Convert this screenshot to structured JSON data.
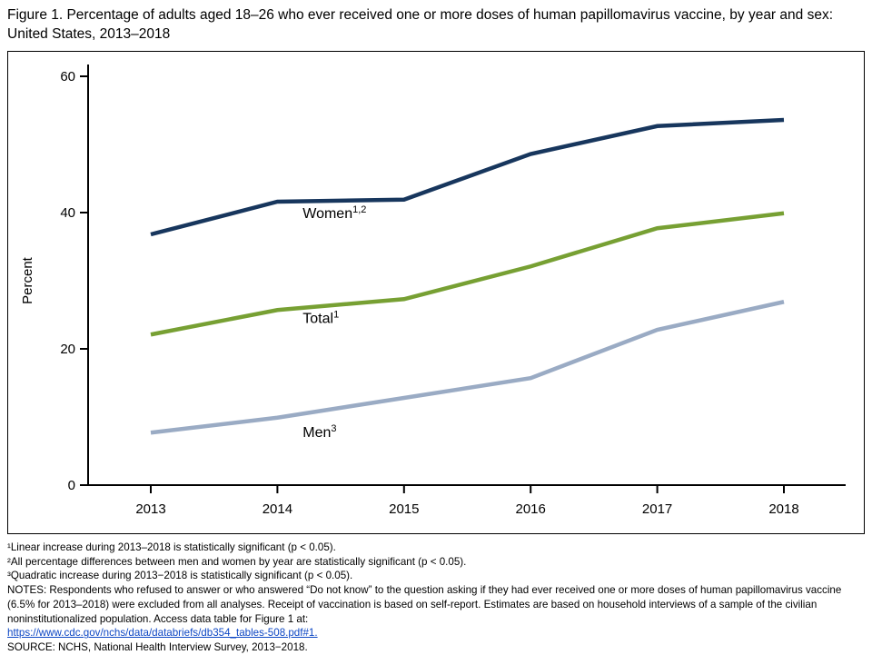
{
  "title": "Figure 1. Percentage of adults aged 18–26 who ever received one or more doses of human papillomavirus vaccine, by year and sex: United States, 2013–2018",
  "chart_data": {
    "type": "line",
    "x": [
      2013,
      2014,
      2015,
      2016,
      2017,
      2018
    ],
    "series": [
      {
        "name": "Women",
        "label_sup": "1,2",
        "color": "#17365d",
        "values": [
          36.8,
          41.6,
          41.9,
          48.6,
          52.7,
          53.6
        ],
        "label_at": {
          "year": 2014.2,
          "value": 39.2
        }
      },
      {
        "name": "Total",
        "label_sup": "1",
        "color": "#77a033",
        "values": [
          22.1,
          25.7,
          27.3,
          32.1,
          37.7,
          39.9
        ],
        "label_at": {
          "year": 2014.2,
          "value": 23.8
        }
      },
      {
        "name": "Men",
        "label_sup": "3",
        "color": "#9aabc4",
        "values": [
          7.7,
          9.9,
          12.8,
          15.7,
          22.8,
          26.9
        ],
        "label_at": {
          "year": 2014.2,
          "value": 7.1
        }
      }
    ],
    "title": "",
    "xlabel": "",
    "ylabel": "Percent",
    "ylim": [
      0,
      60
    ],
    "yticks": [
      0,
      20,
      40,
      60
    ],
    "grid": false,
    "legend": "inline-labels"
  },
  "footnotes": {
    "fn1": "¹Linear increase during 2013–2018 is statistically significant (p < 0.05).",
    "fn2": "²All percentage differences between men and women by year are statistically significant (p < 0.05).",
    "fn3": "³Quadratic increase during 2013−2018 is statistically significant (p < 0.05).",
    "notes": "NOTES: Respondents who refused to answer or who answered “Do not know” to the question asking if they had ever received one or more doses of human papillomavirus vaccine (6.5% for 2013–2018) were excluded from all analyses. Receipt of vaccination is based on self-report. Estimates are based on household interviews of a sample of the civilian noninstitutionalized population. Access data table for Figure 1 at:",
    "link": "https://www.cdc.gov/nchs/data/databriefs/db354_tables-508.pdf#1.",
    "source": "SOURCE: NCHS, National Health Interview Survey, 2013−2018."
  }
}
